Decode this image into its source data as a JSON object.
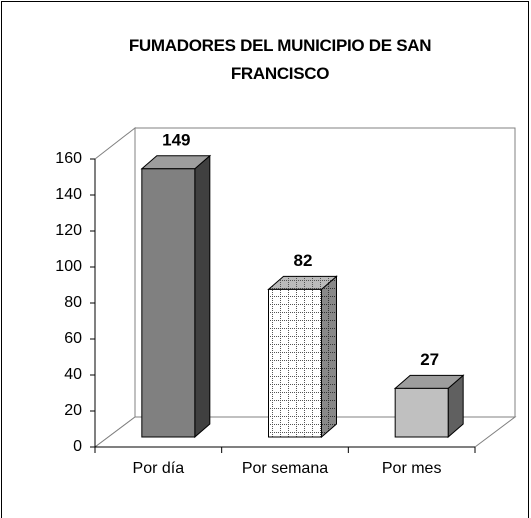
{
  "chart_data": {
    "type": "bar3d",
    "title": "FUMADORES DEL MUNICIPIO DE SAN FRANCISCO",
    "categories": [
      "Por día",
      "Por semana",
      "Por mes"
    ],
    "values": [
      149,
      82,
      27
    ],
    "colors": [
      "#808080",
      "#ffffff",
      "#c0c0c0"
    ],
    "patterns": [
      "solid",
      "grid",
      "solid"
    ],
    "ylim": [
      0,
      160
    ],
    "yticks": [
      0,
      20,
      40,
      60,
      80,
      100,
      120,
      140,
      160
    ]
  }
}
